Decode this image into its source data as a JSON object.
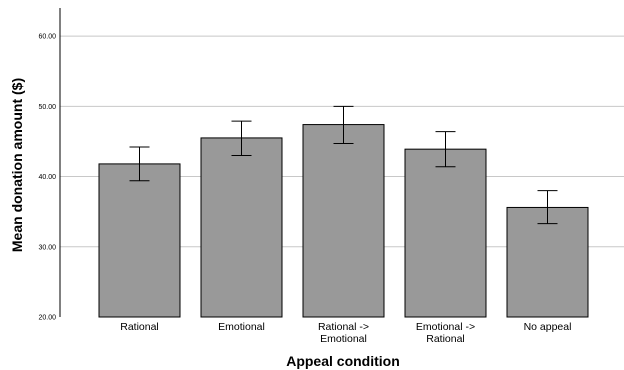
{
  "chart_data": {
    "type": "bar",
    "title": "",
    "xlabel": "Appeal condition",
    "ylabel": "Mean donation amount ($)",
    "ylim": [
      20,
      64
    ],
    "yticks": [
      "20.00",
      "30.00",
      "40.00",
      "50.00",
      "60.00"
    ],
    "grid": true,
    "categories": [
      [
        "Rational"
      ],
      [
        "Emotional"
      ],
      [
        "Rational ->",
        "Emotional"
      ],
      [
        "Emotional ->",
        "Rational"
      ],
      [
        "No appeal"
      ]
    ],
    "values": [
      41.8,
      45.5,
      47.4,
      43.9,
      35.6
    ],
    "error_low": [
      39.4,
      43.0,
      44.7,
      41.4,
      33.3
    ],
    "error_high": [
      44.2,
      47.9,
      50.0,
      46.4,
      38.0
    ],
    "colors": {
      "bar": "#999999",
      "bar_edge": "#000000",
      "grid": "#c8c8c8",
      "axis": "#000000"
    }
  }
}
